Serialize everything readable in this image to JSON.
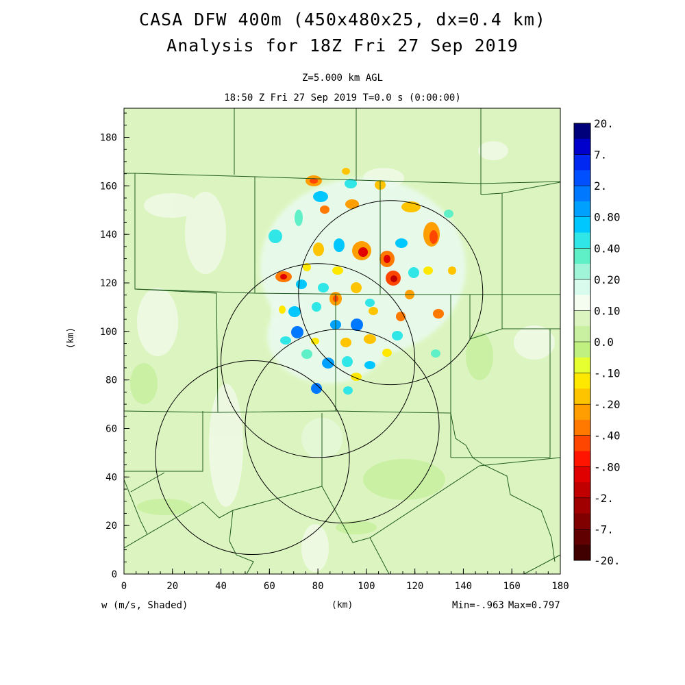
{
  "title": "CASA DFW 400m (450x480x25, dx=0.4 km)",
  "subtitle": "Analysis for 18Z Fri 27 Sep 2019",
  "level_label": "Z=5.000 km AGL",
  "time_label": "18:50 Z Fri 27 Sep 2019   T=0.0 s (0:00:00)",
  "x_axis": {
    "label": "(km)",
    "ticks": [
      "0",
      "20",
      "40",
      "60",
      "80",
      "100",
      "120",
      "140",
      "160",
      "180"
    ],
    "range": [
      0,
      180
    ]
  },
  "y_axis": {
    "label": "(km)",
    "ticks": [
      "0",
      "20",
      "40",
      "60",
      "80",
      "100",
      "120",
      "140",
      "160",
      "180"
    ],
    "range": [
      0,
      192
    ]
  },
  "variable_label": "w (m/s, Shaded)",
  "min_label": "Min=-.963",
  "max_label": "Max=0.797",
  "colorbar": {
    "labels": [
      "20.",
      "7.",
      "2.",
      "0.80",
      "0.40",
      "0.20",
      "0.10",
      "0.0",
      "-.10",
      "-.20",
      "-.40",
      "-.80",
      "-2.",
      "-7.",
      "-20."
    ],
    "colors": [
      "#00007a",
      "#0000cc",
      "#0028f0",
      "#0050ff",
      "#0078ff",
      "#00a0ff",
      "#00c8ff",
      "#30e6e6",
      "#60f0c8",
      "#a0f5d8",
      "#d8fbee",
      "#f4fdf0",
      "#dcf5c0",
      "#c8f0a0",
      "#c0f080",
      "#e6ff30",
      "#ffe800",
      "#ffc400",
      "#ff9e00",
      "#ff7800",
      "#ff4600",
      "#ff1400",
      "#e00000",
      "#c00000",
      "#a00000",
      "#800000",
      "#600000",
      "#400000"
    ]
  },
  "radar_circles": [
    {
      "center_km": [
        110,
        116
      ],
      "radius_km": 38
    },
    {
      "center_km": [
        80,
        88
      ],
      "radius_km": 40
    },
    {
      "center_km": [
        90,
        61
      ],
      "radius_km": 40
    },
    {
      "center_km": [
        53,
        48
      ],
      "radius_km": 40
    }
  ]
}
